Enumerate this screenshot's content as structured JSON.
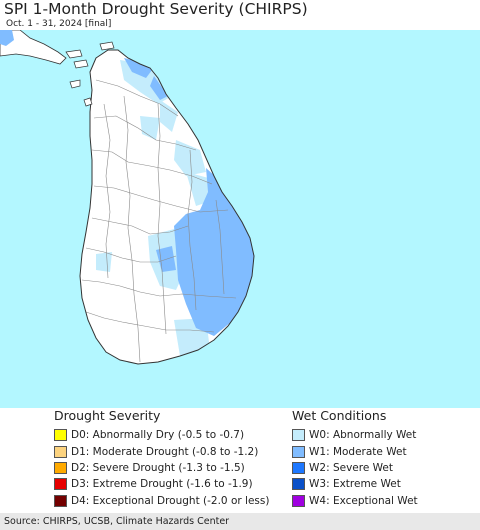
{
  "header": {
    "title": "SPI 1-Month Drought Severity (CHIRPS)",
    "subtitle": "Oct. 1 - 31, 2024 [final]"
  },
  "map": {
    "ocean_color": "#b3f7ff",
    "land_color": "#ffffff",
    "region": "Sri Lanka"
  },
  "legend": {
    "drought": {
      "heading": "Drought Severity",
      "items": [
        {
          "label": "D0: Abnormally Dry (-0.5 to -0.7)",
          "color": "#ffff00"
        },
        {
          "label": "D1: Moderate Drought (-0.8 to -1.2)",
          "color": "#fcd37f"
        },
        {
          "label": "D2: Severe Drought (-1.3 to -1.5)",
          "color": "#ffaa00"
        },
        {
          "label": "D3: Extreme Drought (-1.6 to -1.9)",
          "color": "#e60000"
        },
        {
          "label": "D4: Exceptional Drought (-2.0 or less)",
          "color": "#730000"
        }
      ]
    },
    "wet": {
      "heading": "Wet Conditions",
      "items": [
        {
          "label": "W0: Abnormally Wet",
          "color": "#c4ecfc"
        },
        {
          "label": "W1: Moderate Wet",
          "color": "#80bcff"
        },
        {
          "label": "W2: Severe Wet",
          "color": "#1e78ff"
        },
        {
          "label": "W3: Extreme Wet",
          "color": "#0a50c8"
        },
        {
          "label": "W4: Exceptional Wet",
          "color": "#a000e0"
        }
      ]
    }
  },
  "footer": {
    "source": "Source: CHIRPS, UCSB, Climate Hazards Center"
  }
}
